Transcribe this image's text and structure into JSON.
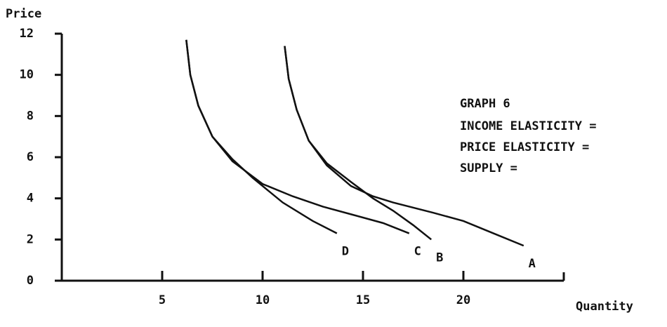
{
  "chart_data": {
    "type": "line",
    "title": "GRAPH 6",
    "annotations": [
      "INCOME ELASTICITY =",
      "PRICE ELASTICITY =",
      "SUPPLY ="
    ],
    "x_label": "Quantity",
    "y_label": "Price",
    "xlim": [
      0,
      25
    ],
    "ylim": [
      0,
      12
    ],
    "xticks": [
      5,
      10,
      15,
      20
    ],
    "yticks": [
      0,
      2,
      4,
      6,
      8,
      10,
      12
    ],
    "series": [
      {
        "name": "D",
        "color": "#111111",
        "x": [
          6.2,
          6.4,
          6.8,
          7.5,
          8.5,
          9.5,
          11,
          12.5,
          13.7
        ],
        "values": [
          11.7,
          10,
          8.5,
          7,
          5.9,
          5,
          3.8,
          2.9,
          2.3
        ]
      },
      {
        "name": "C",
        "color": "#111111",
        "x": [
          6.2,
          6.4,
          6.8,
          7.5,
          8.5,
          10,
          11.5,
          13,
          14.5,
          16,
          17.3
        ],
        "values": [
          11.7,
          10,
          8.5,
          7,
          5.8,
          4.7,
          4.1,
          3.6,
          3.2,
          2.8,
          2.3
        ]
      },
      {
        "name": "B",
        "color": "#111111",
        "x": [
          11.1,
          11.3,
          11.7,
          12.3,
          13.2,
          14.4,
          15.5,
          16.5,
          17.5,
          18.4
        ],
        "values": [
          11.4,
          9.8,
          8.3,
          6.8,
          5.7,
          4.8,
          4,
          3.4,
          2.7,
          2.0
        ]
      },
      {
        "name": "A",
        "color": "#111111",
        "x": [
          11.1,
          11.3,
          11.7,
          12.3,
          13.2,
          14.4,
          15.5,
          16.5,
          18.5,
          20,
          21.5,
          23
        ],
        "values": [
          11.4,
          9.8,
          8.3,
          6.8,
          5.6,
          4.6,
          4.1,
          3.8,
          3.3,
          2.9,
          2.3,
          1.7
        ]
      }
    ]
  }
}
